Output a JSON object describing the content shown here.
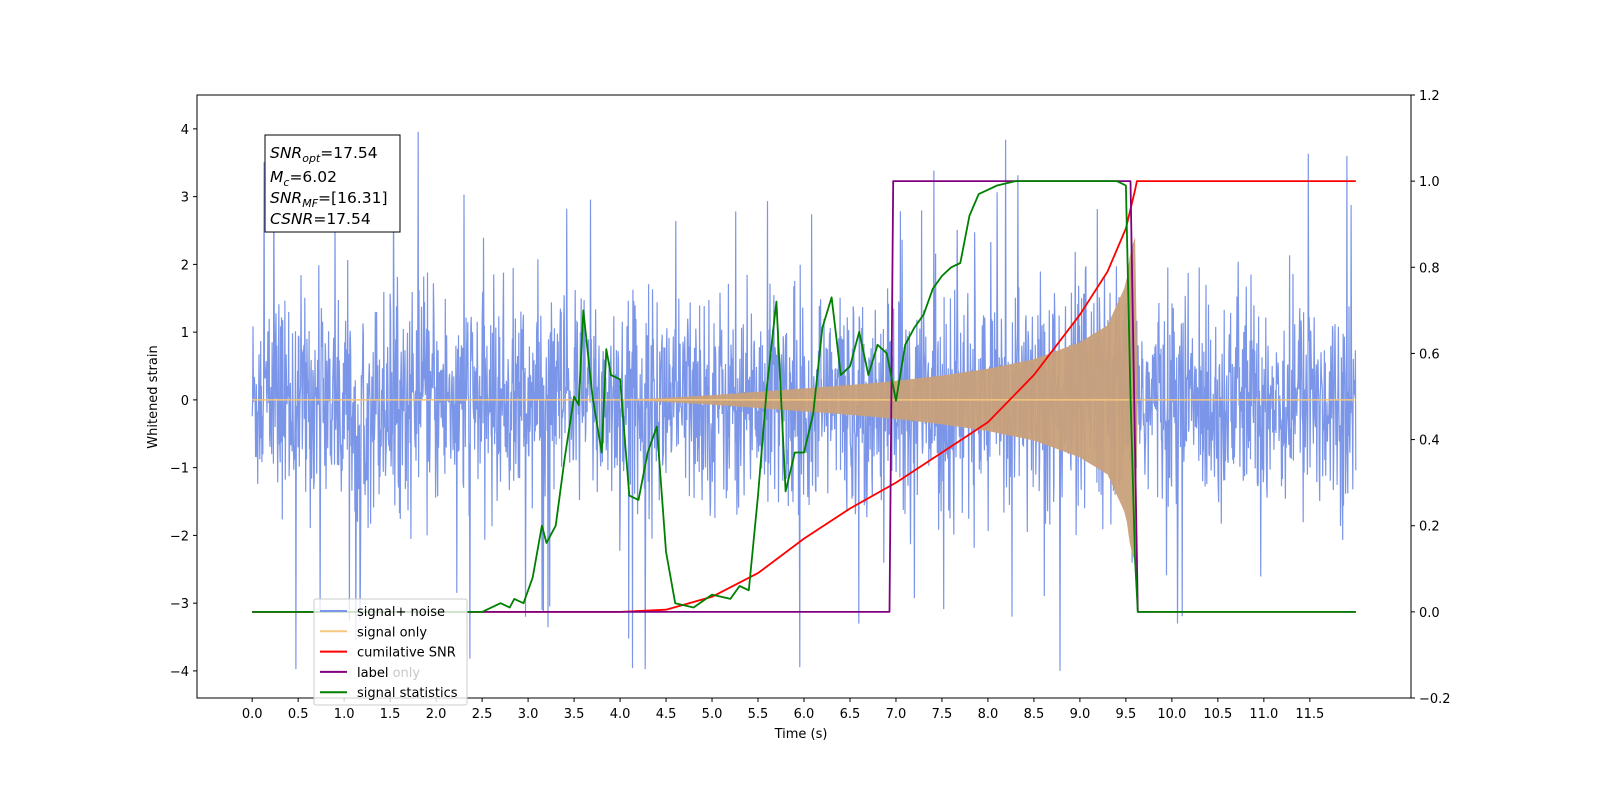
{
  "chart_data": {
    "type": "line",
    "xlabel": "Time (s)",
    "ylabel_left": "Whitened strain",
    "ylabel_right": "",
    "xlim": [
      -0.6,
      12.6
    ],
    "ylim_left": [
      -4.4,
      4.5
    ],
    "ylim_right": [
      -0.2,
      1.2
    ],
    "x_ticks": [
      "0.0",
      "0.5",
      "1.0",
      "1.5",
      "2.0",
      "2.5",
      "3.0",
      "3.5",
      "4.0",
      "4.5",
      "5.0",
      "5.5",
      "6.0",
      "6.5",
      "7.0",
      "7.5",
      "8.0",
      "8.5",
      "9.0",
      "9.5",
      "10.0",
      "10.5",
      "11.0",
      "11.5"
    ],
    "y_ticks_left": [
      "−4",
      "−3",
      "−2",
      "−1",
      "0",
      "1",
      "2",
      "3",
      "4"
    ],
    "y_ticks_right": [
      "−0.2",
      "0.0",
      "0.2",
      "0.4",
      "0.6",
      "0.8",
      "1.0",
      "1.2"
    ],
    "grid": false,
    "legend_position": "lower-left",
    "info_box": {
      "line1": {
        "base": "SNR",
        "sub": "opt",
        "value": "=17.54"
      },
      "line2": {
        "base": "M",
        "sub": "c",
        "value": "=6.02"
      },
      "line3": {
        "base": "SNR",
        "sub": "MF",
        "value": "=[16.31]"
      },
      "line4": {
        "base": "CSNR",
        "sub": "",
        "value": "=17.54"
      }
    },
    "legend": [
      {
        "label": "signal+ noise",
        "color": "#7b96e8"
      },
      {
        "label": "signal only",
        "color": "#f5c77e"
      },
      {
        "label": "cumilative SNR",
        "color": "#ff0000"
      },
      {
        "label": "label",
        "color": "#800080"
      },
      {
        "label": "signal statistics",
        "color": "#008000"
      }
    ],
    "legend_hidden_text": "label only",
    "series": [
      {
        "name": "signal+ noise",
        "axis": "left",
        "color": "#7b96e8",
        "kind": "noise",
        "x_range": [
          0.0,
          12.0
        ],
        "envelope_typical": 2.2,
        "envelope_peak_max": 4.1,
        "envelope_peak_min": -4.0
      },
      {
        "name": "signal only",
        "axis": "left",
        "color": "#c9a07a",
        "kind": "chirp_envelope",
        "x": [
          0.0,
          4.0,
          4.5,
          5.0,
          5.5,
          6.0,
          6.5,
          7.0,
          7.5,
          8.0,
          8.5,
          9.0,
          9.3,
          9.5,
          9.55,
          9.6,
          9.62,
          9.65,
          12.0
        ],
        "amplitude": [
          0.0,
          0.0,
          0.03,
          0.07,
          0.12,
          0.17,
          0.22,
          0.28,
          0.36,
          0.46,
          0.6,
          0.85,
          1.1,
          1.7,
          2.2,
          2.4,
          0.0,
          0.0,
          0.0
        ]
      },
      {
        "name": "cumilative SNR",
        "axis": "right",
        "color": "#ff0000",
        "x": [
          0.0,
          4.0,
          4.5,
          5.0,
          5.5,
          6.0,
          6.5,
          7.0,
          7.5,
          8.0,
          8.5,
          9.0,
          9.3,
          9.5,
          9.6,
          9.62,
          9.65,
          12.0
        ],
        "y": [
          0.0,
          0.0,
          0.005,
          0.035,
          0.09,
          0.17,
          0.24,
          0.3,
          0.37,
          0.44,
          0.55,
          0.69,
          0.79,
          0.89,
          0.98,
          1.0,
          1.0,
          1.0
        ]
      },
      {
        "name": "label",
        "axis": "right",
        "color": "#800080",
        "x": [
          0.0,
          6.93,
          6.97,
          9.55,
          9.63,
          12.0
        ],
        "y": [
          0.0,
          0.0,
          1.0,
          1.0,
          0.0,
          0.0
        ]
      },
      {
        "name": "signal statistics",
        "axis": "right",
        "color": "#008000",
        "x": [
          0.0,
          2.5,
          2.7,
          2.8,
          2.85,
          2.95,
          3.05,
          3.15,
          3.2,
          3.3,
          3.4,
          3.5,
          3.55,
          3.6,
          3.7,
          3.8,
          3.85,
          3.9,
          4.0,
          4.1,
          4.2,
          4.3,
          4.4,
          4.5,
          4.6,
          4.8,
          5.0,
          5.2,
          5.3,
          5.4,
          5.5,
          5.6,
          5.7,
          5.8,
          5.9,
          6.0,
          6.1,
          6.2,
          6.3,
          6.4,
          6.5,
          6.6,
          6.7,
          6.8,
          6.9,
          7.0,
          7.1,
          7.2,
          7.3,
          7.4,
          7.5,
          7.6,
          7.7,
          7.8,
          7.9,
          8.0,
          8.1,
          8.3,
          8.6,
          9.0,
          9.4,
          9.5,
          9.55,
          9.6,
          9.63,
          9.65,
          11.0,
          12.0
        ],
        "y": [
          0.0,
          0.0,
          0.02,
          0.01,
          0.03,
          0.02,
          0.08,
          0.2,
          0.16,
          0.2,
          0.36,
          0.5,
          0.48,
          0.7,
          0.5,
          0.37,
          0.61,
          0.55,
          0.54,
          0.27,
          0.26,
          0.37,
          0.43,
          0.14,
          0.02,
          0.01,
          0.04,
          0.03,
          0.06,
          0.05,
          0.27,
          0.53,
          0.72,
          0.28,
          0.37,
          0.37,
          0.46,
          0.66,
          0.73,
          0.55,
          0.57,
          0.65,
          0.55,
          0.62,
          0.6,
          0.49,
          0.62,
          0.66,
          0.69,
          0.75,
          0.78,
          0.8,
          0.81,
          0.92,
          0.97,
          0.98,
          0.99,
          1.0,
          1.0,
          1.0,
          1.0,
          0.99,
          0.5,
          0.12,
          0.0,
          0.0,
          0.0,
          0.0
        ]
      }
    ]
  }
}
